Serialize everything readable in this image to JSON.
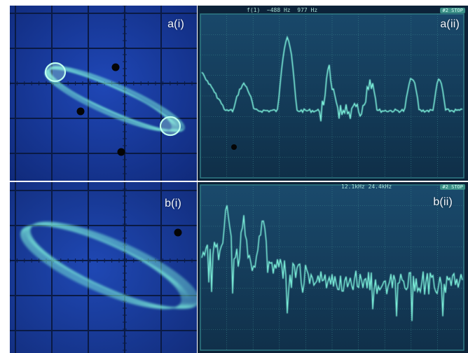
{
  "panels": {
    "a_i": {
      "label": "a(i)"
    },
    "a_ii": {
      "label": "a(ii)",
      "header": "f(1)  ~488 Hz  977 Hz",
      "badge": "#2 STOP"
    },
    "b_i": {
      "label": "b(i)"
    },
    "b_ii": {
      "label": "b(ii)",
      "header": "12.1kHz 24.4kHz",
      "badge": "#2 STOP"
    }
  },
  "colors": {
    "screen_blue": "#13308a",
    "screen_teal": "#163e56",
    "trace": "#6ff2d8",
    "grid": "#0b1530"
  }
}
